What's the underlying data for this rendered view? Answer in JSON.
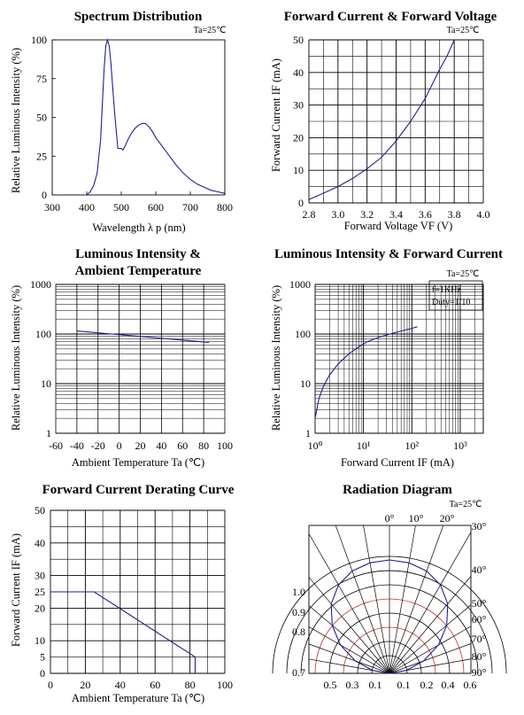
{
  "chart_data": [
    {
      "type": "line",
      "title": "Spectrum Distribution",
      "annotation": "Ta=25℃",
      "xlabel": "Wavelength λ p (nm)",
      "ylabel": "Relative Luminous Intensity (%)",
      "xlim": [
        300,
        800
      ],
      "ylim": [
        0,
        100
      ],
      "xticks": [
        "300",
        "400",
        "500",
        "600",
        "700",
        "800"
      ],
      "yticks": [
        "0",
        "25",
        "50",
        "75",
        "100"
      ],
      "grid": false,
      "series": [
        {
          "x": [
            400,
            410,
            420,
            430,
            440,
            450,
            455,
            460,
            465,
            470,
            480,
            490,
            500,
            505,
            510,
            520,
            530,
            540,
            550,
            560,
            565,
            570,
            580,
            590,
            600,
            620,
            640,
            660,
            680,
            700,
            720,
            740,
            760,
            780,
            800
          ],
          "y": [
            0,
            2,
            6,
            14,
            35,
            80,
            96,
            100,
            96,
            85,
            55,
            30,
            30,
            29,
            31,
            36,
            40,
            43,
            45,
            46,
            46,
            46,
            44,
            41,
            37,
            31,
            25,
            19,
            14,
            10,
            7,
            5,
            3,
            2,
            1
          ]
        }
      ]
    },
    {
      "type": "line",
      "title": "Forward Current & Forward Voltage",
      "annotation": "Ta=25℃",
      "xlabel": "Forward Voltage  VF (V)",
      "ylabel": "Forward Current IF (mA)",
      "xlim": [
        2.8,
        4.0
      ],
      "ylim": [
        0,
        50
      ],
      "xticks": [
        "2.8",
        "3.0",
        "3.2",
        "3.4",
        "3.6",
        "3.8",
        "4.0"
      ],
      "yticks": [
        "0",
        "10",
        "20",
        "30",
        "40",
        "50"
      ],
      "grid": true,
      "series": [
        {
          "x": [
            2.8,
            2.9,
            3.0,
            3.1,
            3.2,
            3.3,
            3.4,
            3.5,
            3.6,
            3.7,
            3.75,
            3.8
          ],
          "y": [
            1,
            3,
            5,
            7.5,
            10.5,
            14,
            19,
            25,
            32,
            41,
            45,
            50
          ]
        }
      ]
    },
    {
      "type": "line",
      "title": "Luminous Intensity & Ambient Temperature",
      "title_lines": [
        "Luminous Intensity &",
        "Ambient Temperature"
      ],
      "xlabel": "Ambient Temperature Ta (℃)",
      "ylabel": "Relative Luminous Intensity (%)",
      "xlim": [
        -60,
        100
      ],
      "ylim": [
        1,
        1000
      ],
      "yscale": "log",
      "xticks": [
        "-60",
        "-40",
        "-20",
        "0",
        "20",
        "40",
        "60",
        "80",
        "100"
      ],
      "yticks": [
        "1",
        "10",
        "100",
        "1000"
      ],
      "grid": true,
      "series": [
        {
          "x": [
            -40,
            85
          ],
          "y": [
            115,
            68
          ]
        }
      ]
    },
    {
      "type": "line",
      "title": "Luminous Intensity & Forward Current",
      "annotation": "Ta=25℃",
      "legend_notes": [
        "f=1KHz",
        "Duty=1/10"
      ],
      "xlabel": "Forward Current IF (mA)",
      "ylabel": "Relative Luminous Intensity (%)",
      "xlim": [
        1,
        3000
      ],
      "ylim": [
        1,
        1000
      ],
      "xscale": "log",
      "yscale": "log",
      "xticks": [
        "10⁰",
        "10¹",
        "10²",
        "10³"
      ],
      "yticks": [
        "1",
        "10",
        "100",
        "1000"
      ],
      "grid": true,
      "series": [
        {
          "x": [
            1,
            1.2,
            1.5,
            2,
            3,
            5,
            8,
            12,
            20,
            35,
            60,
            100,
            130
          ],
          "y": [
            2,
            5,
            9,
            15,
            25,
            40,
            55,
            70,
            85,
            100,
            115,
            130,
            140
          ]
        }
      ]
    },
    {
      "type": "line",
      "title": "Forward Current Derating Curve",
      "xlabel": "Ambient Temperature Ta (℃)",
      "ylabel": "Forward Current IF (mA)",
      "xlim": [
        0,
        100
      ],
      "ylim": [
        0,
        50
      ],
      "xticks": [
        "0",
        "20",
        "40",
        "60",
        "80",
        "100"
      ],
      "yticks": [
        "0",
        "5",
        "10",
        "20",
        "25",
        "30",
        "40",
        "50"
      ],
      "grid": true,
      "series": [
        {
          "x": [
            0,
            25,
            83,
            83
          ],
          "y": [
            25,
            25,
            5,
            0
          ]
        }
      ]
    },
    {
      "type": "polar",
      "title": "Radiation Diagram",
      "annotation": "Ta=25℃",
      "angle_labels": [
        "0°",
        "10°",
        "20°",
        "30°",
        "40°",
        "50°",
        "60°",
        "70°",
        "80°",
        "90°"
      ],
      "left_labels": [
        "1.0",
        "0.9",
        "0.8",
        "0.7"
      ],
      "bottom_labels": [
        "0.5",
        "0.3",
        "0.1",
        "0.1",
        "0.2",
        "0.4",
        "0.6"
      ],
      "series": [
        {
          "name": "",
          "angles": [
            -90,
            -80,
            -70,
            -60,
            -50,
            -40,
            -30,
            -20,
            -10,
            0,
            10,
            20,
            30,
            40,
            50,
            60,
            70,
            80,
            90
          ],
          "values": [
            0,
            0.15,
            0.32,
            0.5,
            0.66,
            0.8,
            0.9,
            0.96,
            0.99,
            1,
            0.99,
            0.96,
            0.9,
            0.8,
            0.66,
            0.5,
            0.32,
            0.15,
            0
          ]
        }
      ],
      "colors": {
        "curve": "#1f1f8f",
        "red_arcs": "#c03030"
      }
    }
  ],
  "colors": {
    "line": "#1f1f8f",
    "grid": "#000000"
  }
}
